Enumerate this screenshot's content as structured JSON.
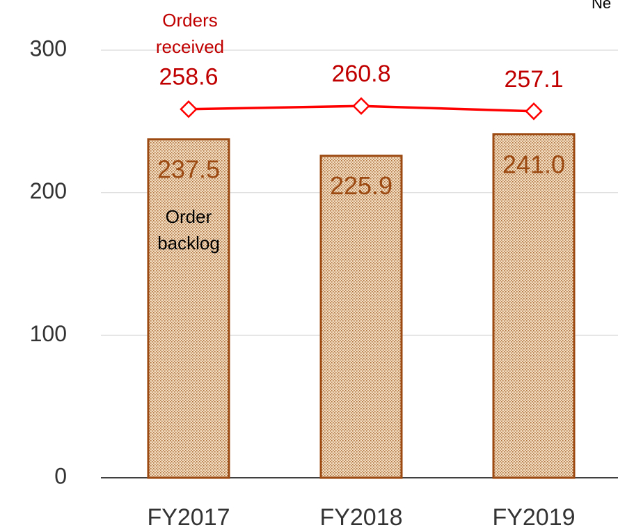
{
  "chart_data": {
    "type": "bar_line",
    "annotation": "Ne",
    "categories": [
      "FY2017",
      "FY2018",
      "FY2019"
    ],
    "series": [
      {
        "name": "Order backlog",
        "type": "bar",
        "color": "#9c4a12",
        "values": [
          237.5,
          225.9,
          241.0
        ],
        "value_labels": [
          "237.5",
          "225.9",
          "241.0"
        ]
      },
      {
        "name": "Orders received",
        "type": "line",
        "color": "#ff0000",
        "label_color": "#c00000",
        "values": [
          258.6,
          260.8,
          257.1
        ]
      }
    ],
    "ylim": [
      0,
      300
    ],
    "yticks": [
      0,
      100,
      200,
      300
    ],
    "grid": true
  }
}
